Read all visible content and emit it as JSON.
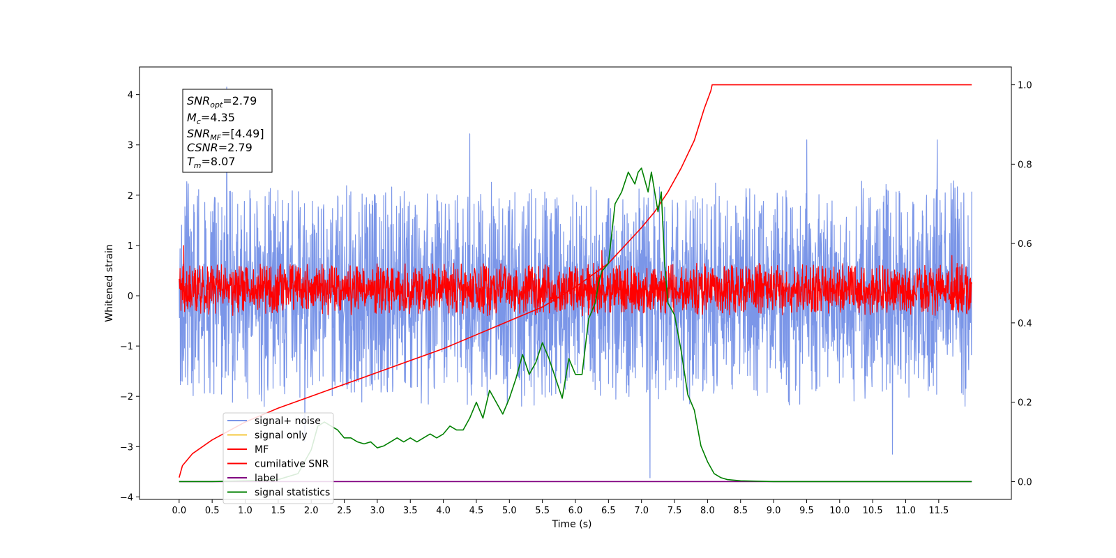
{
  "chart_data": {
    "type": "line",
    "xlabel": "Time (s)",
    "ylabel": "Whitened strain",
    "xlim": [
      -0.6,
      12.6
    ],
    "ylim_left": [
      -4.05,
      4.55
    ],
    "ylim_right": [
      -0.045,
      1.045
    ],
    "x_ticks": [
      "0.0",
      "0.5",
      "1.0",
      "1.5",
      "2.0",
      "2.5",
      "3.0",
      "3.5",
      "4.0",
      "4.5",
      "5.0",
      "5.5",
      "6.0",
      "6.5",
      "7.0",
      "7.5",
      "8.0",
      "8.5",
      "9.0",
      "9.5",
      "10.0",
      "10.5",
      "11.0",
      "11.5"
    ],
    "y_ticks_left": [
      "4",
      "3",
      "2",
      "1",
      "0",
      "−1",
      "−2",
      "−3",
      "−4"
    ],
    "y_ticks_right": [
      "1.0",
      "0.8",
      "0.6",
      "0.4",
      "0.2",
      "0.0"
    ],
    "grid": false,
    "legend_position": "lower-left",
    "info_box": {
      "snr_opt": "=2.79",
      "mc": "=4.35",
      "snr_mf": "=[4.49]",
      "csnr": "=2.79",
      "tm": "=8.07"
    },
    "series": [
      {
        "name": "signal+ noise",
        "axis": "left",
        "color": "#7b96e8",
        "kind": "noise",
        "x_range": [
          0.0,
          12.0
        ],
        "band": [
          -2.0,
          2.1
        ],
        "outliers": [
          [
            0.72,
            4.15
          ],
          [
            4.4,
            3.22
          ],
          [
            7.13,
            -3.62
          ],
          [
            10.8,
            -3.15
          ],
          [
            11.48,
            3.1
          ],
          [
            1.9,
            -2.9
          ],
          [
            9.5,
            3.1
          ]
        ]
      },
      {
        "name": "signal only",
        "axis": "left",
        "color": "#f5c842",
        "values": []
      },
      {
        "name": "MF",
        "axis": "left",
        "color": "#ff0000",
        "kind": "noise",
        "x_range": [
          0.0,
          12.0
        ],
        "band": [
          -0.35,
          0.6
        ],
        "outliers": [
          [
            0.07,
            1.0
          ],
          [
            6.4,
            0.9
          ],
          [
            11.7,
            0.8
          ]
        ]
      },
      {
        "name": "cumilative SNR",
        "axis": "right",
        "color": "#ff0000",
        "x": [
          0.0,
          0.05,
          0.2,
          0.5,
          1.0,
          1.5,
          2.0,
          2.5,
          3.0,
          3.5,
          4.0,
          4.5,
          5.0,
          5.5,
          6.0,
          6.5,
          7.0,
          7.2,
          7.4,
          7.6,
          7.8,
          7.95,
          8.05,
          8.07,
          8.5,
          9.0,
          10.0,
          11.0,
          12.0
        ],
        "y": [
          0.01,
          0.04,
          0.07,
          0.105,
          0.15,
          0.185,
          0.215,
          0.245,
          0.275,
          0.305,
          0.335,
          0.37,
          0.405,
          0.44,
          0.49,
          0.55,
          0.64,
          0.68,
          0.73,
          0.79,
          0.86,
          0.94,
          0.985,
          1.0,
          1.0,
          1.0,
          1.0,
          1.0,
          1.0
        ]
      },
      {
        "name": "label",
        "axis": "right",
        "color": "#800080",
        "x": [
          0.0,
          12.0
        ],
        "y": [
          0.0,
          0.0
        ]
      },
      {
        "name": "signal statistics",
        "axis": "right",
        "color": "#008000",
        "x": [
          0.0,
          0.5,
          1.0,
          1.5,
          1.8,
          2.0,
          2.1,
          2.2,
          2.3,
          2.4,
          2.5,
          2.6,
          2.7,
          2.8,
          2.9,
          3.0,
          3.1,
          3.2,
          3.3,
          3.4,
          3.5,
          3.6,
          3.7,
          3.8,
          3.9,
          4.0,
          4.1,
          4.2,
          4.3,
          4.4,
          4.5,
          4.6,
          4.7,
          4.8,
          4.9,
          5.0,
          5.1,
          5.2,
          5.3,
          5.4,
          5.5,
          5.6,
          5.7,
          5.8,
          5.9,
          6.0,
          6.1,
          6.2,
          6.3,
          6.35,
          6.4,
          6.5,
          6.6,
          6.7,
          6.8,
          6.9,
          6.95,
          7.0,
          7.1,
          7.15,
          7.25,
          7.3,
          7.35,
          7.4,
          7.5,
          7.6,
          7.7,
          7.8,
          7.9,
          8.0,
          8.1,
          8.2,
          8.3,
          8.5,
          9.0,
          10.0,
          11.0,
          12.0
        ],
        "y": [
          0.0,
          0.0,
          0.002,
          0.005,
          0.02,
          0.08,
          0.14,
          0.15,
          0.14,
          0.13,
          0.11,
          0.11,
          0.1,
          0.095,
          0.1,
          0.085,
          0.09,
          0.1,
          0.11,
          0.1,
          0.11,
          0.1,
          0.11,
          0.12,
          0.11,
          0.12,
          0.14,
          0.13,
          0.13,
          0.16,
          0.2,
          0.16,
          0.23,
          0.2,
          0.17,
          0.21,
          0.26,
          0.32,
          0.27,
          0.3,
          0.35,
          0.31,
          0.26,
          0.21,
          0.31,
          0.27,
          0.27,
          0.41,
          0.45,
          0.5,
          0.53,
          0.55,
          0.7,
          0.73,
          0.78,
          0.75,
          0.78,
          0.79,
          0.73,
          0.78,
          0.68,
          0.73,
          0.55,
          0.45,
          0.42,
          0.33,
          0.22,
          0.18,
          0.09,
          0.05,
          0.02,
          0.01,
          0.005,
          0.002,
          0.0,
          0.0,
          0.0,
          0.0
        ]
      }
    ]
  }
}
